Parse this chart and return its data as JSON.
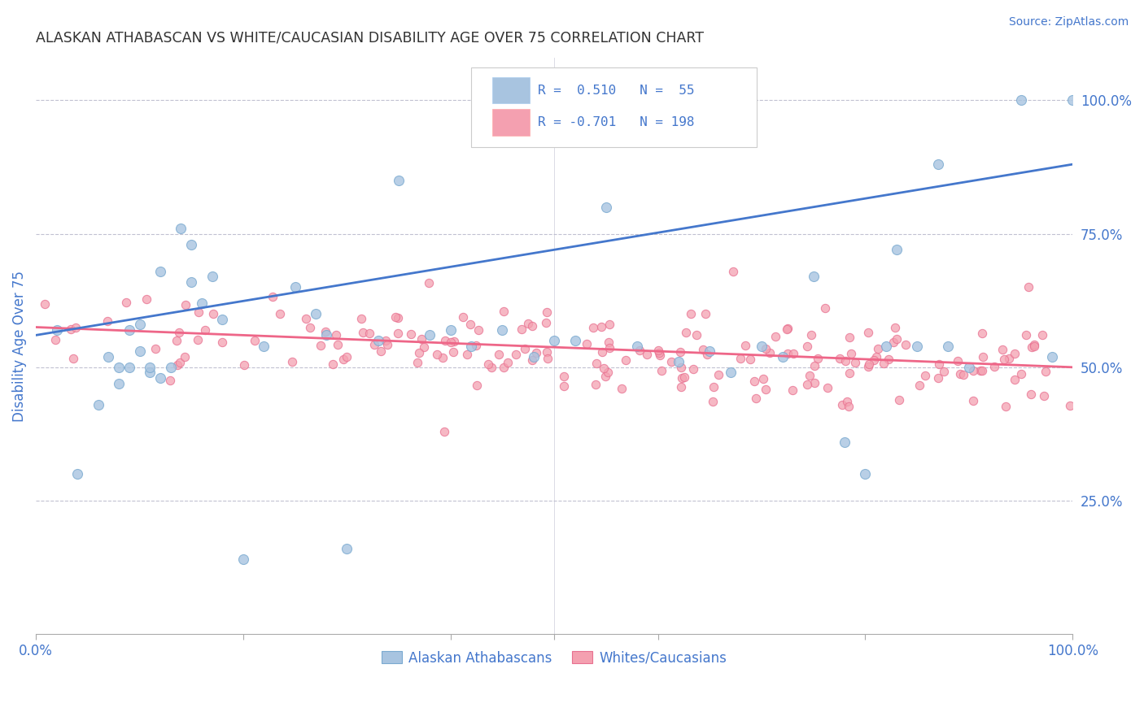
{
  "title": "ALASKAN ATHABASCAN VS WHITE/CAUCASIAN DISABILITY AGE OVER 75 CORRELATION CHART",
  "source": "Source: ZipAtlas.com",
  "ylabel": "Disability Age Over 75",
  "right_yticks": [
    "100.0%",
    "75.0%",
    "50.0%",
    "25.0%"
  ],
  "right_ytick_vals": [
    1.0,
    0.75,
    0.5,
    0.25
  ],
  "legend_blue_label": "Alaskan Athabascans",
  "legend_pink_label": "Whites/Caucasians",
  "r_blue": 0.51,
  "n_blue": 55,
  "r_pink": -0.701,
  "n_pink": 198,
  "blue_color": "#A8C4E0",
  "blue_edge_color": "#7AAAD0",
  "pink_color": "#F4A0B0",
  "pink_edge_color": "#E87090",
  "blue_line_color": "#4477CC",
  "pink_line_color": "#EE6688",
  "title_color": "#333333",
  "source_color": "#4477CC",
  "axis_label_color": "#4477CC",
  "tick_color": "#4477CC",
  "grid_color": "#BBBBCC",
  "background_color": "#FFFFFF",
  "blue_intercept": 0.56,
  "blue_slope": 0.32,
  "pink_intercept": 0.575,
  "pink_slope": -0.075,
  "xlim": [
    0.0,
    1.0
  ],
  "ylim": [
    0.0,
    1.08
  ],
  "blue_x": [
    0.02,
    0.04,
    0.06,
    0.07,
    0.08,
    0.08,
    0.09,
    0.09,
    0.1,
    0.1,
    0.11,
    0.11,
    0.12,
    0.12,
    0.13,
    0.14,
    0.15,
    0.15,
    0.16,
    0.17,
    0.18,
    0.2,
    0.22,
    0.25,
    0.27,
    0.28,
    0.3,
    0.33,
    0.35,
    0.38,
    0.4,
    0.42,
    0.45,
    0.48,
    0.5,
    0.52,
    0.55,
    0.58,
    0.62,
    0.65,
    0.67,
    0.7,
    0.72,
    0.75,
    0.78,
    0.8,
    0.82,
    0.83,
    0.85,
    0.87,
    0.88,
    0.9,
    0.95,
    0.98,
    1.0
  ],
  "blue_y": [
    0.57,
    0.3,
    0.43,
    0.52,
    0.47,
    0.5,
    0.5,
    0.57,
    0.53,
    0.58,
    0.49,
    0.5,
    0.68,
    0.48,
    0.5,
    0.76,
    0.73,
    0.66,
    0.62,
    0.67,
    0.59,
    0.14,
    0.54,
    0.65,
    0.6,
    0.56,
    0.16,
    0.55,
    0.85,
    0.56,
    0.57,
    0.54,
    0.57,
    0.52,
    0.55,
    0.55,
    0.8,
    0.54,
    0.51,
    0.53,
    0.49,
    0.54,
    0.52,
    0.67,
    0.36,
    0.3,
    0.54,
    0.72,
    0.54,
    0.88,
    0.54,
    0.5,
    1.0,
    0.52,
    1.0
  ],
  "pink_seed": 123
}
